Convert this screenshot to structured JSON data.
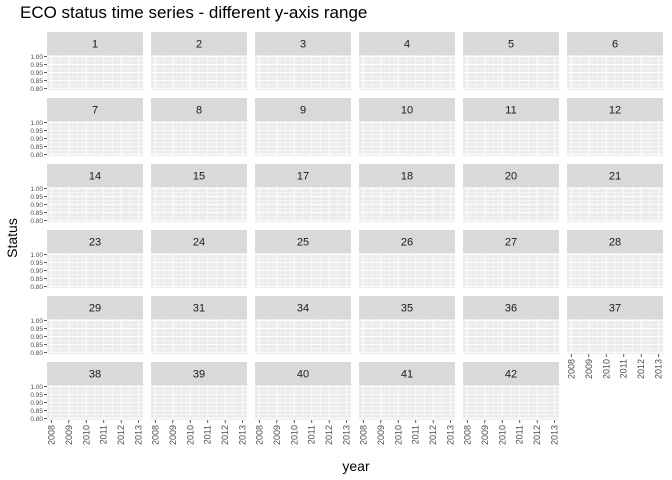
{
  "chart_data": {
    "type": "line",
    "title": "ECO status time series - different y-axis range",
    "xlabel": "year",
    "ylabel": "Status",
    "facet_columns": 6,
    "facets": [
      "1",
      "2",
      "3",
      "4",
      "5",
      "6",
      "7",
      "8",
      "9",
      "10",
      "11",
      "12",
      "14",
      "15",
      "17",
      "18",
      "20",
      "21",
      "23",
      "24",
      "25",
      "26",
      "27",
      "28",
      "29",
      "31",
      "34",
      "35",
      "36",
      "37",
      "38",
      "39",
      "40",
      "41",
      "42"
    ],
    "x_ticks": [
      "2008",
      "2009",
      "2010",
      "2011",
      "2012",
      "2013"
    ],
    "xlim": [
      2008,
      2013
    ],
    "y_ticks": [
      "0.80",
      "0.85",
      "0.90",
      "0.95",
      "1.00"
    ],
    "ylim": [
      0.79,
      1.01
    ],
    "grid": true,
    "series": [],
    "colors": {
      "strip_fill": "#d9d9d9",
      "panel_fill": "#ebebeb",
      "grid_major": "#ffffff",
      "tick_text": "#4d4d4d"
    }
  }
}
